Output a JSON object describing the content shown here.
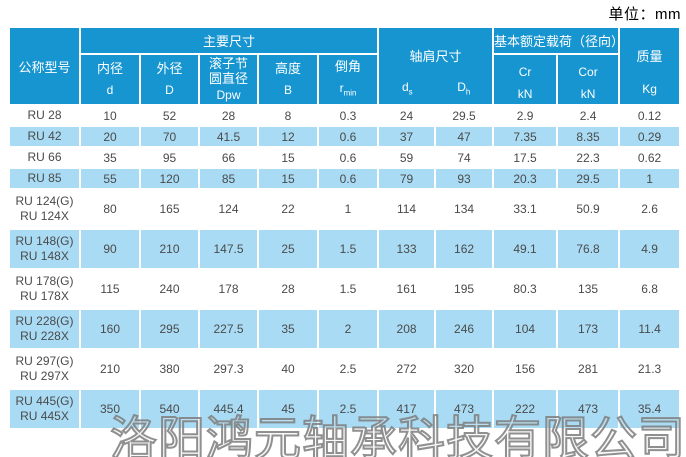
{
  "page": {
    "unit_label": "单位：mm"
  },
  "colors": {
    "header_blue": "#1695d1",
    "row_alt_blue": "#a9dcf4",
    "row_white": "#ffffff",
    "grid_line": "#ffffff",
    "body_text": "#4a4a4a",
    "header_text": "#ffffff"
  },
  "table": {
    "header": {
      "model": "公称型号",
      "main_dims": "主要尺寸",
      "bore_label": "内径",
      "bore_symbol": "d",
      "outer_label": "外径",
      "outer_symbol": "D",
      "pitch_label_line1": "滚子节",
      "pitch_label_line2": "圆直径",
      "pitch_symbol": "Dpw",
      "height_label": "高度",
      "height_symbol": "B",
      "chamfer_label": "倒角",
      "chamfer_symbol_base": "r",
      "chamfer_symbol_sub": "min",
      "shoulder_label": "轴肩尺寸",
      "shoulder_ds_base": "d",
      "shoulder_ds_sub": "s",
      "shoulder_dh_base": "D",
      "shoulder_dh_sub": "h",
      "load_label": "基本额定载荷（径向）",
      "load_cr": "Cr",
      "load_cr_unit": "kN",
      "load_cor": "Cor",
      "load_cor_unit": "kN",
      "mass_label": "质量",
      "mass_unit": "Kg"
    },
    "rows": [
      {
        "model": [
          "RU 28"
        ],
        "values": [
          "10",
          "52",
          "28",
          "8",
          "0.3",
          "24",
          "29.5",
          "2.9",
          "2.4",
          "0.12"
        ]
      },
      {
        "model": [
          "RU 42"
        ],
        "values": [
          "20",
          "70",
          "41.5",
          "12",
          "0.6",
          "37",
          "47",
          "7.35",
          "8.35",
          "0.29"
        ]
      },
      {
        "model": [
          "RU 66"
        ],
        "values": [
          "35",
          "95",
          "66",
          "15",
          "0.6",
          "59",
          "74",
          "17.5",
          "22.3",
          "0.62"
        ]
      },
      {
        "model": [
          "RU 85"
        ],
        "values": [
          "55",
          "120",
          "85",
          "15",
          "0.6",
          "79",
          "93",
          "20.3",
          "29.5",
          "1"
        ]
      },
      {
        "model": [
          "RU 124(G)",
          "RU 124X"
        ],
        "values": [
          "80",
          "165",
          "124",
          "22",
          "1",
          "114",
          "134",
          "33.1",
          "50.9",
          "2.6"
        ]
      },
      {
        "model": [
          "RU 148(G)",
          "RU 148X"
        ],
        "values": [
          "90",
          "210",
          "147.5",
          "25",
          "1.5",
          "133",
          "162",
          "49.1",
          "76.8",
          "4.9"
        ]
      },
      {
        "model": [
          "RU 178(G)",
          "RU 178X"
        ],
        "values": [
          "115",
          "240",
          "178",
          "28",
          "1.5",
          "161",
          "195",
          "80.3",
          "135",
          "6.8"
        ]
      },
      {
        "model": [
          "RU 228(G)",
          "RU 228X"
        ],
        "values": [
          "160",
          "295",
          "227.5",
          "35",
          "2",
          "208",
          "246",
          "104",
          "173",
          "11.4"
        ]
      },
      {
        "model": [
          "RU 297(G)",
          "RU 297X"
        ],
        "values": [
          "210",
          "380",
          "297.3",
          "40",
          "2.5",
          "272",
          "320",
          "156",
          "281",
          "21.3"
        ]
      },
      {
        "model": [
          "RU 445(G)",
          "RU 445X"
        ],
        "values": [
          "350",
          "540",
          "445.4",
          "45",
          "2.5",
          "417",
          "473",
          "222",
          "473",
          "35.4"
        ]
      }
    ]
  },
  "watermark": {
    "text": "洛阳鸿元轴承科技有限公司"
  }
}
